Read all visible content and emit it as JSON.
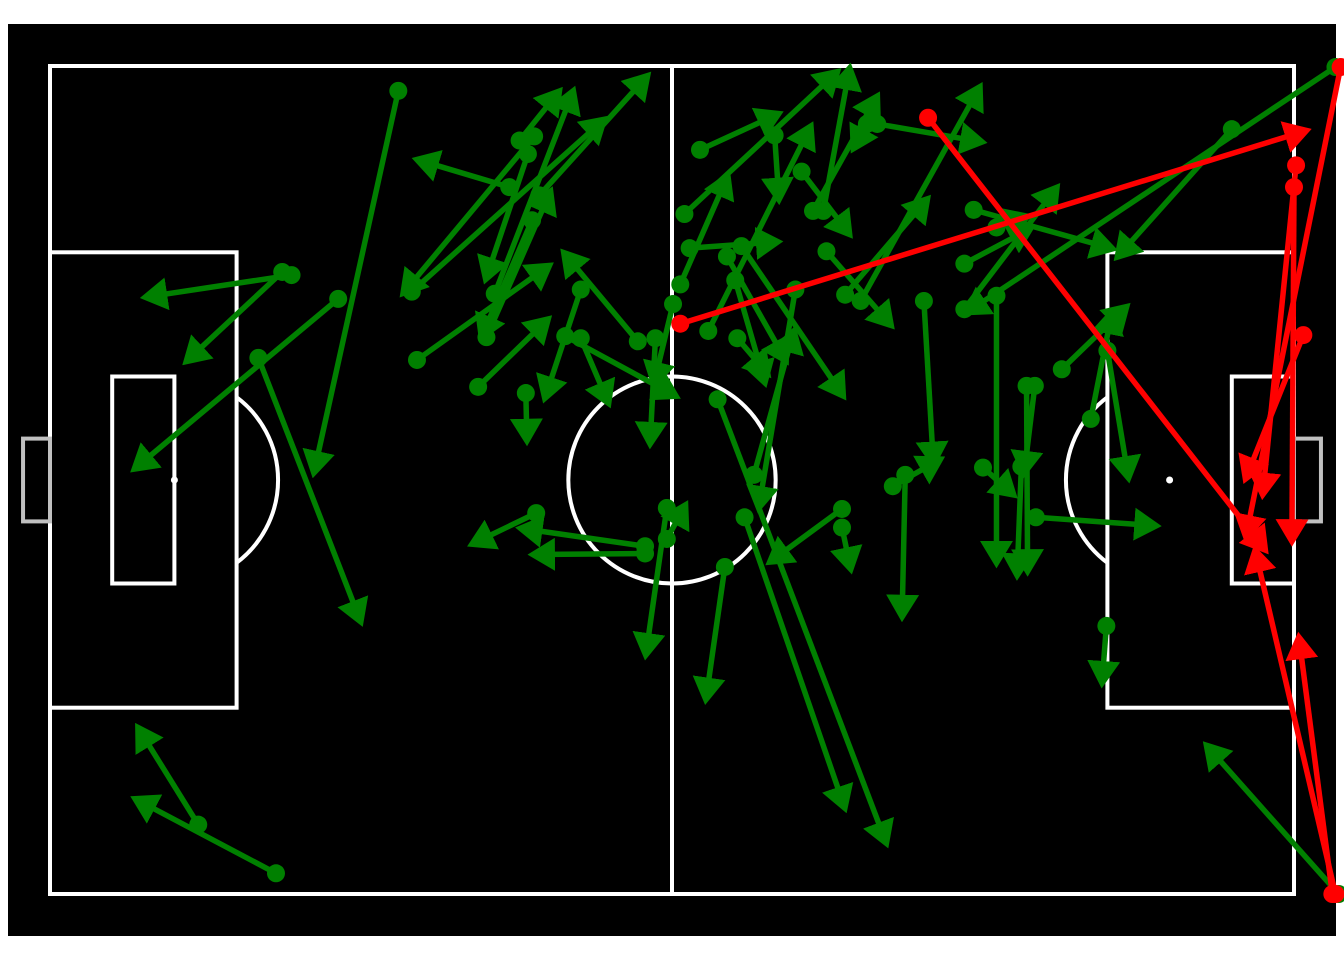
{
  "chart_data": {
    "type": "scatter",
    "title": "",
    "pitch": {
      "length": 120,
      "width": 80,
      "grid": false
    },
    "colors": {
      "background": "#000000",
      "lines": "#ffffff",
      "goal": "#c0c0c0",
      "successful": "#008000",
      "unsuccessful": "#ff0000"
    },
    "series": [
      {
        "outcome": "successful",
        "passes": [
          [
            33.6,
            2.4,
            25.5,
            39.1
          ],
          [
            21.8,
            78.0,
            8.4,
            70.9
          ],
          [
            14.3,
            73.3,
            8.6,
            64.1
          ],
          [
            23.3,
            20.2,
            9.4,
            22.3
          ],
          [
            27.8,
            22.5,
            8.3,
            38.8
          ],
          [
            22.4,
            19.9,
            13.3,
            28.4
          ],
          [
            20.1,
            28.2,
            29.9,
            53.5
          ],
          [
            35.4,
            28.4,
            48.0,
            19.4
          ],
          [
            41.3,
            31.0,
            47.9,
            24.6
          ],
          [
            34.9,
            21.8,
            53.3,
            5.3
          ],
          [
            42.9,
            22.0,
            50.4,
            2.6
          ],
          [
            44.3,
            11.7,
            35.6,
            9.1
          ],
          [
            45.3,
            7.2,
            49.0,
            2.6
          ],
          [
            47.2,
            12.5,
            57.5,
            1.1
          ],
          [
            46.7,
            6.8,
            34.2,
            21.8
          ],
          [
            46.1,
            8.5,
            42.1,
            20.4
          ],
          [
            42.1,
            26.2,
            48.2,
            12.3
          ],
          [
            46.5,
            14.9,
            41.7,
            26.0
          ],
          [
            51.2,
            21.6,
            47.8,
            31.9
          ],
          [
            45.9,
            31.6,
            46.0,
            36.0
          ],
          [
            51.2,
            26.3,
            53.8,
            32.4
          ],
          [
            49.7,
            26.1,
            60.2,
            31.8
          ],
          [
            56.7,
            26.6,
            49.7,
            18.2
          ],
          [
            58.4,
            26.3,
            57.9,
            36.3
          ],
          [
            60.1,
            23.0,
            58.3,
            30.5
          ],
          [
            60.8,
            21.1,
            65.3,
            10.8
          ],
          [
            62.7,
            8.1,
            70.1,
            4.7
          ],
          [
            61.7,
            17.6,
            70.0,
            17.0
          ],
          [
            61.2,
            14.3,
            75.8,
            0.7
          ],
          [
            63.5,
            25.6,
            73.3,
            6.0
          ],
          [
            65.3,
            18.4,
            70.9,
            28.3
          ],
          [
            66.7,
            17.4,
            76.4,
            31.7
          ],
          [
            66.1,
            20.7,
            68.9,
            30.4
          ],
          [
            66.3,
            26.3,
            69.1,
            29.6
          ],
          [
            69.9,
            6.7,
            70.3,
            12.7
          ],
          [
            71.9,
            21.6,
            68.4,
            42.5
          ],
          [
            72.5,
            10.2,
            77.0,
            16.1
          ],
          [
            73.6,
            14.0,
            79.7,
            3.1
          ],
          [
            74.6,
            14.0,
            77.1,
            0.4
          ],
          [
            79.8,
            5.6,
            89.7,
            7.3
          ],
          [
            78.8,
            5.6,
            77.6,
            7.8
          ],
          [
            74.9,
            17.9,
            81.0,
            24.9
          ],
          [
            78.2,
            22.7,
            89.6,
            2.2
          ],
          [
            76.7,
            22.1,
            84.5,
            13.0
          ],
          [
            84.3,
            22.7,
            85.2,
            38.2
          ],
          [
            88.2,
            23.5,
            97.0,
            11.9
          ],
          [
            91.3,
            15.6,
            94.1,
            14.6
          ],
          [
            88.2,
            19.1,
            94.4,
            15.8
          ],
          [
            91.3,
            22.2,
            91.3,
            47.8
          ],
          [
            89.1,
            13.9,
            102.3,
            17.6
          ],
          [
            114.0,
            6.1,
            103.1,
            18.3
          ],
          [
            124.0,
            0.1,
            88.6,
            23.7
          ],
          [
            76.4,
            42.8,
            69.6,
            47.8
          ],
          [
            76.4,
            44.6,
            77.2,
            48.4
          ],
          [
            59.5,
            45.7,
            61.2,
            42.6
          ],
          [
            57.4,
            46.4,
            45.6,
            44.7
          ],
          [
            57.4,
            47.1,
            46.8,
            47.2
          ],
          [
            46.9,
            43.2,
            40.9,
            46.1
          ],
          [
            59.5,
            42.7,
            57.5,
            56.7
          ],
          [
            65.1,
            48.4,
            63.3,
            61.0
          ],
          [
            67.0,
            43.6,
            76.6,
            71.5
          ],
          [
            64.4,
            32.2,
            80.6,
            74.9
          ],
          [
            67.9,
            39.5,
            71.7,
            25.8
          ],
          [
            95.0,
            30.9,
            94.0,
            39.1
          ],
          [
            93.7,
            38.7,
            93.3,
            49.0
          ],
          [
            82.5,
            39.5,
            82.2,
            53.0
          ],
          [
            90.0,
            38.8,
            92.8,
            41.3
          ],
          [
            81.3,
            40.6,
            85.7,
            38.1
          ],
          [
            100.4,
            34.1,
            102.4,
            24.0
          ],
          [
            101.9,
            54.1,
            101.5,
            59.4
          ],
          [
            124.3,
            80.0,
            111.7,
            65.8
          ],
          [
            97.6,
            29.3,
            103.7,
            23.4
          ],
          [
            95.1,
            43.6,
            106.5,
            44.4
          ],
          [
            102.0,
            27.5,
            104.0,
            39.6
          ],
          [
            94.2,
            30.9,
            94.3,
            48.6
          ]
        ]
      },
      {
        "outcome": "unsuccessful",
        "passes": [
          [
            60.8,
            24.9,
            121.0,
            6.3
          ],
          [
            84.7,
            5.0,
            117.1,
            46.6
          ],
          [
            124.5,
            0.1,
            115.4,
            45.3
          ],
          [
            120.0,
            11.7,
            119.8,
            45.7
          ],
          [
            120.9,
            26.0,
            115.4,
            39.7
          ],
          [
            120.2,
            9.6,
            117.0,
            41.2
          ],
          [
            124.0,
            80.0,
            116.3,
            47.0
          ],
          [
            123.7,
            80.0,
            120.5,
            55.4
          ]
        ]
      }
    ]
  }
}
